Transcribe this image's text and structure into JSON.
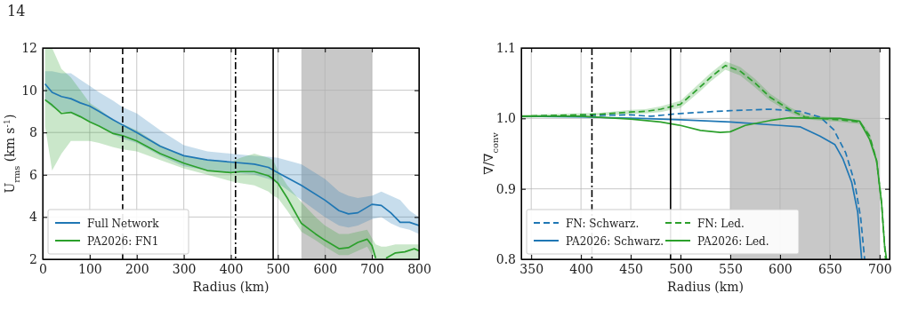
{
  "chart_data": [
    {
      "type": "line",
      "annotations": [
        "14"
      ],
      "xlabel": "Radius (km)",
      "ylabel": "U$_{rms}$ (km s$^{-1}$)",
      "xlim": [
        0,
        800
      ],
      "xticks": [
        0,
        100,
        200,
        300,
        400,
        500,
        600,
        700,
        800
      ],
      "ylim": [
        2,
        12
      ],
      "yticks": [
        2,
        4,
        6,
        8,
        10,
        12
      ],
      "grid": true,
      "legend": "bottom left",
      "ref_lines": [
        {
          "axis": "x",
          "value": 170,
          "line_style": "dashed",
          "color": "#000000"
        },
        {
          "axis": "x",
          "value": 410,
          "line_style": "dashdot",
          "color": "#000000"
        },
        {
          "axis": "x",
          "value": 490,
          "line_style": "solid",
          "color": "#000000"
        }
      ],
      "bands": [
        {
          "axis": "x",
          "from": 550,
          "to": 700,
          "color": "#c8c8c8"
        }
      ],
      "series": [
        {
          "name": "Full Network",
          "color": "#1f77b4",
          "line_style": "solid",
          "x": [
            5,
            20,
            40,
            60,
            80,
            100,
            120,
            150,
            170,
            200,
            250,
            300,
            350,
            400,
            450,
            480,
            500,
            550,
            600,
            630,
            650,
            670,
            700,
            720,
            740,
            760,
            780,
            800
          ],
          "values": [
            10.3,
            9.9,
            9.7,
            9.6,
            9.4,
            9.25,
            9.0,
            8.6,
            8.35,
            8.0,
            7.35,
            6.9,
            6.7,
            6.6,
            6.5,
            6.35,
            6.1,
            5.5,
            4.8,
            4.3,
            4.15,
            4.2,
            4.6,
            4.55,
            4.2,
            3.75,
            3.75,
            3.6
          ],
          "lower": [
            9.5,
            9.2,
            9.0,
            8.9,
            8.7,
            8.5,
            8.3,
            7.9,
            7.7,
            7.5,
            6.9,
            6.4,
            6.2,
            6.1,
            6.0,
            5.8,
            5.6,
            4.8,
            4.0,
            3.6,
            3.5,
            3.6,
            3.9,
            4.0,
            3.7,
            3.5,
            3.4,
            3.2
          ],
          "upper": [
            10.9,
            10.9,
            10.8,
            10.8,
            10.5,
            10.2,
            9.9,
            9.5,
            9.2,
            8.9,
            8.1,
            7.4,
            7.1,
            7.0,
            6.9,
            6.85,
            6.8,
            6.5,
            5.8,
            5.2,
            5.0,
            4.9,
            5.0,
            5.2,
            5.0,
            4.8,
            4.3,
            4.0
          ]
        },
        {
          "name": "PA2026: FN1",
          "color": "#2ca02c",
          "line_style": "solid",
          "x": [
            5,
            20,
            40,
            60,
            80,
            100,
            120,
            150,
            170,
            200,
            250,
            300,
            350,
            400,
            420,
            450,
            480,
            490,
            500,
            520,
            550,
            580,
            600,
            630,
            650,
            670,
            690,
            700,
            708,
            720,
            730,
            750,
            770,
            790,
            800
          ],
          "values": [
            9.55,
            9.3,
            8.9,
            8.95,
            8.75,
            8.5,
            8.3,
            7.95,
            7.85,
            7.6,
            7.0,
            6.55,
            6.2,
            6.1,
            6.15,
            6.15,
            5.95,
            5.8,
            5.6,
            4.9,
            3.7,
            3.2,
            2.9,
            2.5,
            2.55,
            2.8,
            2.95,
            2.65,
            2.05,
            null,
            2.05,
            2.3,
            2.35,
            2.5,
            2.4
          ],
          "lower": [
            8.3,
            6.2,
            7.0,
            7.6,
            7.6,
            7.6,
            7.5,
            7.3,
            7.2,
            7.1,
            6.7,
            6.3,
            6.0,
            5.7,
            5.6,
            5.5,
            5.2,
            5.0,
            4.9,
            4.3,
            3.3,
            2.9,
            2.6,
            2.2,
            2.2,
            2.4,
            2.6,
            2.2,
            2.0,
            2.0,
            2.0,
            2.0,
            2.0,
            2.0,
            2.0
          ],
          "upper": [
            12,
            12,
            11.0,
            10.6,
            10.0,
            9.4,
            9.1,
            8.6,
            8.4,
            8.1,
            7.4,
            6.9,
            6.7,
            6.6,
            6.8,
            7.0,
            6.8,
            6.7,
            6.2,
            5.5,
            4.7,
            4.0,
            3.6,
            3.2,
            3.2,
            3.3,
            3.4,
            3.0,
            2.7,
            2.6,
            2.6,
            2.7,
            2.7,
            2.7,
            2.7
          ]
        }
      ]
    },
    {
      "type": "line",
      "xlabel": "Radius (km)",
      "ylabel": "∇/∇$_{conv}$",
      "xlim": [
        340,
        710
      ],
      "xticks": [
        350,
        400,
        450,
        500,
        550,
        600,
        650,
        700
      ],
      "ylim": [
        0.8,
        1.1
      ],
      "yticks": [
        0.8,
        0.9,
        {
          "value": 1.0,
          "label": "1.0"
        },
        1.1
      ],
      "grid": true,
      "legend": "bottom left",
      "ref_lines": [
        {
          "axis": "x",
          "value": 411,
          "line_style": "dashdot",
          "color": "#000000"
        },
        {
          "axis": "x",
          "value": 490,
          "line_style": "solid",
          "color": "#000000"
        }
      ],
      "bands": [
        {
          "axis": "x",
          "from": 550,
          "to": 700,
          "color": "#c8c8c8"
        }
      ],
      "series": [
        {
          "name": "FN: Schwarz.",
          "color": "#1f77b4",
          "line_style": "dashed",
          "x": [
            340,
            400,
            450,
            470,
            500,
            550,
            590,
            620,
            640,
            654,
            666,
            675,
            681,
            685
          ],
          "values": [
            1.003,
            1.004,
            1.005,
            1.003,
            1.007,
            1.011,
            1.013,
            1.01,
            1.002,
            0.984,
            0.951,
            0.909,
            0.859,
            0.8
          ]
        },
        {
          "name": "PA2026: Schwarz.",
          "color": "#1f77b4",
          "line_style": "solid",
          "x": [
            340,
            400,
            460,
            500,
            550,
            600,
            620,
            640,
            655,
            663,
            672,
            678,
            682
          ],
          "values": [
            1.003,
            1.002,
            1.0,
            0.998,
            0.995,
            0.99,
            0.988,
            0.975,
            0.963,
            0.943,
            0.909,
            0.867,
            0.8
          ]
        },
        {
          "name": "FN: Led.",
          "color": "#2ca02c",
          "line_style": "dashed",
          "x": [
            340,
            420,
            450,
            465,
            480,
            500,
            520,
            530,
            545,
            560,
            575,
            590,
            610,
            625,
            640,
            660,
            680,
            690,
            697,
            702,
            706
          ],
          "values": [
            1.003,
            1.006,
            1.009,
            1.01,
            1.013,
            1.02,
            1.045,
            1.058,
            1.075,
            1.067,
            1.05,
            1.03,
            1.012,
            1.002,
            1.0,
            0.998,
            0.995,
            0.975,
            0.94,
            0.88,
            0.8
          ],
          "lower": [
            1.001,
            1.004,
            1.006,
            1.007,
            1.009,
            1.015,
            1.039,
            1.052,
            1.069,
            1.061,
            1.044,
            1.025,
            1.008,
            0.999,
            0.997,
            0.995,
            0.992,
            0.971,
            0.936,
            0.876,
            0.8
          ],
          "upper": [
            1.005,
            1.008,
            1.012,
            1.013,
            1.017,
            1.025,
            1.051,
            1.064,
            1.081,
            1.073,
            1.056,
            1.035,
            1.016,
            1.005,
            1.003,
            1.001,
            0.998,
            0.979,
            0.944,
            0.884,
            0.804
          ]
        },
        {
          "name": "PA2026: Led.",
          "color": "#2ca02c",
          "line_style": "solid",
          "x": [
            340,
            400,
            450,
            480,
            500,
            520,
            540,
            550,
            565,
            590,
            610,
            640,
            660,
            680,
            690,
            697,
            702,
            705,
            707
          ],
          "values": [
            1.003,
            1.003,
            0.999,
            0.995,
            0.99,
            0.983,
            0.98,
            0.981,
            0.99,
            0.997,
            1.001,
            1.0,
            1.0,
            0.996,
            0.97,
            0.94,
            0.88,
            0.82,
            0.8
          ]
        }
      ]
    }
  ]
}
